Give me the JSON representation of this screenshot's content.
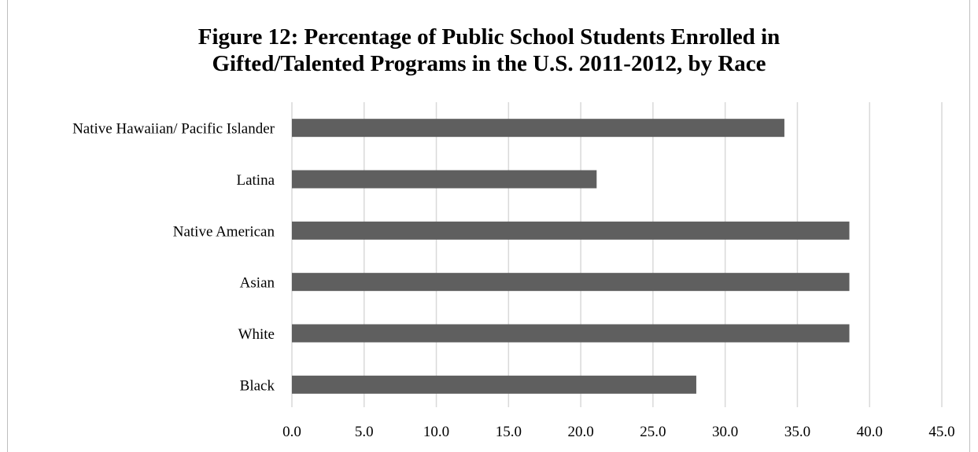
{
  "chart_data": {
    "type": "bar",
    "orientation": "horizontal",
    "title_lines": [
      "Figure 12: Percentage of Public School Students Enrolled in",
      "Gifted/Talented Programs in the U.S. 2011-2012, by Race"
    ],
    "categories": [
      "Native Hawaiian/ Pacific Islander",
      "Latina",
      "Native American",
      "Asian",
      "White",
      "Black"
    ],
    "values": [
      34.1,
      21.1,
      38.6,
      38.6,
      38.6,
      28.0
    ],
    "xlim": [
      0,
      45
    ],
    "xticks": [
      "0.0",
      "5.0",
      "10.0",
      "15.0",
      "20.0",
      "25.0",
      "30.0",
      "35.0",
      "40.0",
      "45.0"
    ],
    "xlabel": "",
    "ylabel": "",
    "grid": "vertical",
    "legend": "none",
    "bar_color": "#5f5f5f",
    "grid_color": "#d9d9d9"
  }
}
